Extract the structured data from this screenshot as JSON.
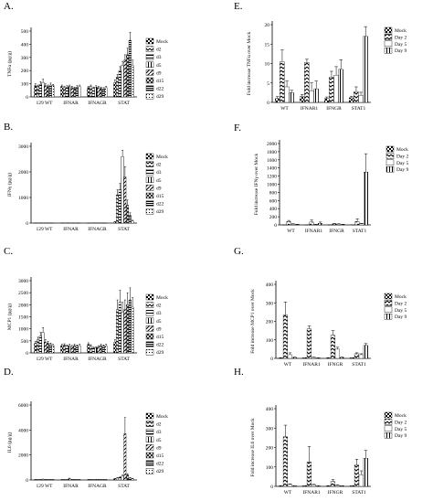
{
  "figure": {
    "width": 474,
    "height": 548
  },
  "patterns": {
    "mock": "checker",
    "d2": "zigzag",
    "d3": "horizontal",
    "d5": "vertical",
    "d9": "diagonal",
    "d15": "crosshatch",
    "d22": "horizontal-dense",
    "d29": "dots",
    "day2": "zigzag",
    "day5": "white",
    "day9": "vertical"
  },
  "chart_data": [
    {
      "panel": "A.",
      "type": "bar",
      "ylabel": "TNFα (pg/g)",
      "ylim": [
        0,
        500
      ],
      "yticks": [
        0,
        100,
        200,
        300,
        400,
        500
      ],
      "categories": [
        "129 WT",
        "IFNAR",
        "IFNAGR",
        "STAT"
      ],
      "legend": [
        "Mock",
        "d2",
        "d3",
        "d5",
        "d9",
        "d15",
        "d22",
        "d29"
      ],
      "series_keys": [
        "mock",
        "d2",
        "d3",
        "d5",
        "d9",
        "d15",
        "d22",
        "d29"
      ],
      "values": [
        [
          85,
          80,
          95,
          110,
          85,
          80,
          90,
          85
        ],
        [
          80,
          70,
          75,
          80,
          70,
          65,
          75,
          80
        ],
        [
          70,
          80,
          65,
          75,
          70,
          65,
          60,
          70
        ],
        [
          110,
          150,
          200,
          240,
          280,
          320,
          430,
          240
        ]
      ],
      "errors": [
        [
          15,
          10,
          20,
          25,
          15,
          10,
          15,
          10
        ],
        [
          10,
          10,
          10,
          10,
          10,
          10,
          10,
          10
        ],
        [
          10,
          10,
          10,
          10,
          10,
          10,
          10,
          10
        ],
        [
          20,
          20,
          30,
          30,
          40,
          50,
          60,
          40
        ]
      ]
    },
    {
      "panel": "B.",
      "type": "bar",
      "ylabel": "IFNγ (pg/g)",
      "ylim": [
        0,
        3000
      ],
      "yticks": [
        0,
        1000,
        2000,
        3000
      ],
      "categories": [
        "129 WT",
        "IFNAR",
        "IFNAGR",
        "STAT"
      ],
      "legend": [
        "Mock",
        "d2",
        "d3",
        "d5",
        "d9",
        "d15",
        "d22",
        "d29"
      ],
      "series_keys": [
        "mock",
        "d2",
        "d3",
        "d5",
        "d9",
        "d15",
        "d22",
        "d29"
      ],
      "values": [
        [
          10,
          10,
          10,
          10,
          10,
          10,
          10,
          10
        ],
        [
          10,
          10,
          10,
          10,
          10,
          10,
          10,
          10
        ],
        [
          10,
          10,
          10,
          10,
          10,
          10,
          10,
          10
        ],
        [
          40,
          1100,
          1300,
          2600,
          1800,
          700,
          300,
          80
        ]
      ],
      "errors": [
        [
          0,
          0,
          0,
          0,
          0,
          0,
          0,
          0
        ],
        [
          0,
          0,
          0,
          0,
          0,
          0,
          0,
          0
        ],
        [
          0,
          0,
          0,
          0,
          0,
          0,
          0,
          0
        ],
        [
          20,
          200,
          250,
          250,
          400,
          200,
          100,
          30
        ]
      ]
    },
    {
      "panel": "C.",
      "type": "bar",
      "ylabel": "MCP1 (pg/g)",
      "ylim": [
        0,
        3000
      ],
      "yticks": [
        0,
        500,
        1000,
        1500,
        2000,
        2500,
        3000
      ],
      "categories": [
        "129 WT",
        "IFNAR",
        "IFNAGR",
        "STAT"
      ],
      "legend": [
        "Mock",
        "d2",
        "d3",
        "d5",
        "d9",
        "d15",
        "d22",
        "d29"
      ],
      "series_keys": [
        "mock",
        "d2",
        "d3",
        "d5",
        "d9",
        "d15",
        "d22",
        "d29"
      ],
      "values": [
        [
          400,
          550,
          700,
          850,
          450,
          400,
          350,
          300
        ],
        [
          300,
          320,
          280,
          300,
          260,
          300,
          280,
          300
        ],
        [
          350,
          280,
          200,
          220,
          250,
          300,
          280,
          300
        ],
        [
          450,
          1800,
          2100,
          1700,
          1800,
          2000,
          2200,
          1900
        ]
      ],
      "errors": [
        [
          80,
          100,
          150,
          200,
          100,
          80,
          60,
          50
        ],
        [
          60,
          60,
          50,
          60,
          50,
          60,
          50,
          60
        ],
        [
          70,
          60,
          40,
          40,
          50,
          60,
          50,
          60
        ],
        [
          100,
          400,
          500,
          400,
          400,
          500,
          500,
          400
        ]
      ]
    },
    {
      "panel": "D.",
      "type": "bar",
      "ylabel": "IL6 (pg/g)",
      "ylim": [
        0,
        6000
      ],
      "yticks": [
        0,
        2000,
        4000,
        6000
      ],
      "categories": [
        "129 WT",
        "IFNAR",
        "IFNAGR",
        "STAT"
      ],
      "legend": [
        "Mock",
        "d2",
        "d3",
        "d5",
        "d9",
        "d15",
        "d22",
        "d29"
      ],
      "series_keys": [
        "mock",
        "d2",
        "d3",
        "d5",
        "d9",
        "d15",
        "d22",
        "d29"
      ],
      "values": [
        [
          30,
          40,
          30,
          50,
          40,
          30,
          30,
          40
        ],
        [
          30,
          30,
          40,
          100,
          30,
          40,
          30,
          30
        ],
        [
          30,
          40,
          30,
          30,
          40,
          30,
          30,
          30
        ],
        [
          100,
          150,
          200,
          300,
          3700,
          400,
          150,
          100
        ]
      ],
      "errors": [
        [
          10,
          10,
          10,
          20,
          10,
          10,
          10,
          10
        ],
        [
          10,
          10,
          10,
          40,
          10,
          10,
          10,
          10
        ],
        [
          10,
          10,
          10,
          10,
          10,
          10,
          10,
          10
        ],
        [
          30,
          40,
          50,
          100,
          1300,
          100,
          50,
          30
        ]
      ]
    },
    {
      "panel": "E.",
      "type": "bar",
      "ylabel": "Fold increase TNFα over Mock",
      "ylim": [
        0,
        20
      ],
      "yticks": [
        0,
        5,
        10,
        15,
        20
      ],
      "categories": [
        "WT",
        "IFNAR1",
        "IFNGR",
        "STAT1"
      ],
      "legend": [
        "Mock",
        "Day 2",
        "Day 5",
        "Day 9"
      ],
      "series_keys": [
        "mock",
        "day2",
        "day5",
        "day9"
      ],
      "values": [
        [
          1,
          10.5,
          4,
          2.5
        ],
        [
          1.5,
          10.3,
          3,
          3.5
        ],
        [
          1,
          6.5,
          7,
          8.5
        ],
        [
          1.2,
          2.8,
          1.8,
          17
        ]
      ],
      "errors": [
        [
          0.5,
          3,
          1.5,
          0.6
        ],
        [
          0.5,
          0.8,
          2,
          2
        ],
        [
          0.4,
          1.5,
          2.2,
          2.5
        ],
        [
          0.4,
          1.2,
          0.8,
          2.5
        ]
      ]
    },
    {
      "panel": "F.",
      "type": "bar",
      "ylabel": "Fold increase IFNγ over Mock",
      "ylim": [
        0,
        2000
      ],
      "yticks": [
        0,
        200,
        400,
        600,
        800,
        1000,
        1200,
        1400,
        1600,
        1800,
        2000
      ],
      "categories": [
        "WT",
        "IFNAR1",
        "IFNGR",
        "STAT1"
      ],
      "legend": [
        "Mock",
        "Day 2",
        "Day 5",
        "Day 9"
      ],
      "series_keys": [
        "mock",
        "day2",
        "day5",
        "day9"
      ],
      "values": [
        [
          5,
          80,
          20,
          10
        ],
        [
          5,
          70,
          10,
          40
        ],
        [
          5,
          25,
          20,
          10
        ],
        [
          5,
          80,
          30,
          1300
        ]
      ],
      "errors": [
        [
          0,
          30,
          10,
          5
        ],
        [
          0,
          50,
          5,
          30
        ],
        [
          0,
          10,
          8,
          5
        ],
        [
          0,
          70,
          10,
          450
        ]
      ]
    },
    {
      "panel": "G.",
      "type": "bar",
      "ylabel": "Fold increase MCP1 over Mock",
      "ylim": [
        0,
        400
      ],
      "yticks": [
        0,
        100,
        200,
        300,
        400
      ],
      "categories": [
        "WT",
        "IFNAR1",
        "IFNGR",
        "STAT1"
      ],
      "legend": [
        "Mock",
        "Day 2",
        "Day 5",
        "Day 9"
      ],
      "series_keys": [
        "mock",
        "day2",
        "day5",
        "day9"
      ],
      "values": [
        [
          3,
          235,
          20,
          5
        ],
        [
          3,
          160,
          5,
          3
        ],
        [
          3,
          125,
          50,
          5
        ],
        [
          3,
          25,
          20,
          70
        ]
      ],
      "errors": [
        [
          1,
          70,
          10,
          2
        ],
        [
          1,
          15,
          2,
          1
        ],
        [
          1,
          25,
          10,
          2
        ],
        [
          1,
          5,
          5,
          10
        ]
      ]
    },
    {
      "panel": "H.",
      "type": "bar",
      "ylabel": "Fold increase IL6 over Mock",
      "ylim": [
        0,
        400
      ],
      "yticks": [
        0,
        100,
        200,
        300,
        400
      ],
      "categories": [
        "WT",
        "IFNAR1",
        "IFNGR",
        "STAT1"
      ],
      "legend": [
        "Mock",
        "Day 2",
        "Day 5",
        "Day 9"
      ],
      "series_keys": [
        "mock",
        "day2",
        "day5",
        "day9"
      ],
      "values": [
        [
          3,
          255,
          10,
          3
        ],
        [
          3,
          125,
          8,
          3
        ],
        [
          3,
          25,
          5,
          3
        ],
        [
          3,
          110,
          60,
          145
        ]
      ],
      "errors": [
        [
          1,
          60,
          3,
          1
        ],
        [
          1,
          80,
          3,
          1
        ],
        [
          1,
          10,
          3,
          1
        ],
        [
          1,
          30,
          20,
          40
        ]
      ]
    }
  ]
}
